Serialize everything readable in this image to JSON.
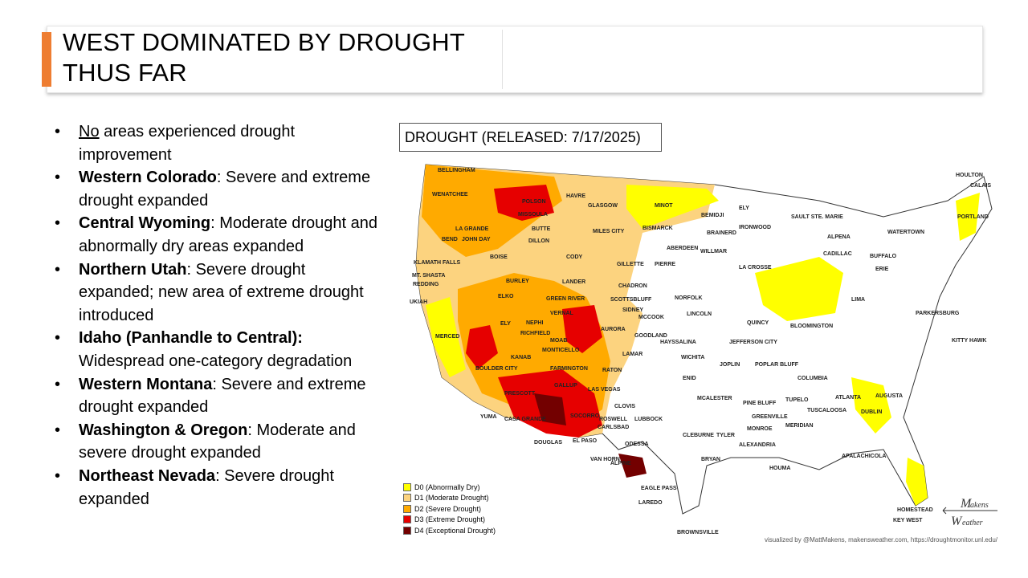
{
  "slide": {
    "title_lines": [
      "WEST DOMINATED BY DROUGHT",
      "THUS FAR"
    ],
    "accent_color": "#ee7d31"
  },
  "bullets": [
    {
      "bold": "",
      "underline": "No",
      "text": " areas experienced drought improvement"
    },
    {
      "bold": "Western Colorado",
      "underline": "",
      "text": ": Severe and extreme drought expanded"
    },
    {
      "bold": "Central Wyoming",
      "underline": "",
      "text": ": Moderate drought and abnormally dry areas expanded"
    },
    {
      "bold": "Northern Utah",
      "underline": "",
      "text": ": Severe drought expanded; new area of extreme drought introduced"
    },
    {
      "bold": "Idaho (Panhandle to Central):",
      "underline": "",
      "text": " Widespread one-category degradation"
    },
    {
      "bold": "Western Montana",
      "underline": "",
      "text": ": Severe and extreme drought expanded"
    },
    {
      "bold": "Washington & Oregon",
      "underline": "",
      "text": ": Moderate and severe drought expanded"
    },
    {
      "bold": "Northeast Nevada",
      "underline": "",
      "text": ": Severe drought expanded"
    }
  ],
  "map": {
    "title": "DROUGHT (RELEASED: 7/17/2025)",
    "legend": [
      {
        "label": "D0 (Abnormally Dry)",
        "color": "#ffff00"
      },
      {
        "label": "D1 (Moderate Drought)",
        "color": "#fcd37f"
      },
      {
        "label": "D2 (Severe Drought)",
        "color": "#ffaa00"
      },
      {
        "label": "D3 (Extreme Drought)",
        "color": "#e60000"
      },
      {
        "label": "D4 (Exceptional Drought)",
        "color": "#730000"
      }
    ],
    "cities": [
      "BELLINGHAM",
      "WENATCHEE",
      "POLSON",
      "HAVRE",
      "GLASGOW",
      "MINOT",
      "BEMIDJI",
      "ELY",
      "HOULTON",
      "CALAIS",
      "MISSOULA",
      "LA GRANDE",
      "BUTTE",
      "DILLON",
      "MILES CITY",
      "BISMARCK",
      "BRAINERD",
      "IRONWOOD",
      "SAULT STE. MARIE",
      "PORTLAND",
      "BEND",
      "JOHN DAY",
      "BOISE",
      "CODY",
      "ABERDEEN",
      "WILLMAR",
      "ALPENA",
      "WATERTOWN",
      "KLAMATH FALLS",
      "MT. SHASTA",
      "REDDING",
      "GILLETTE",
      "PIERRE",
      "LA CROSSE",
      "CADILLAC",
      "BUFFALO",
      "ERIE",
      "BURLEY",
      "LANDER",
      "CHADRON",
      "NORFOLK",
      "UKIAH",
      "ELKO",
      "GREEN RIVER",
      "SCOTTSBLUFF",
      "SIDNEY",
      "LINCOLN",
      "LIMA",
      "PARKERSBURG",
      "NEPHI",
      "VERNAL",
      "MCCOOK",
      "QUINCY",
      "BLOOMINGTON",
      "MERCED",
      "ELY",
      "RICHFIELD",
      "AURORA",
      "GOODLAND",
      "MOAB",
      "MONTICELLO",
      "HAYSSALINA",
      "JEFFERSON CITY",
      "KITTY HAWK",
      "KANAB",
      "LAMAR",
      "WICHITA",
      "BOULDER CITY",
      "FARMINGTON",
      "RATON",
      "JOPLIN",
      "POPLAR BLUFF",
      "COLUMBIA",
      "GALLUP",
      "LAS VEGAS",
      "ENID",
      "PRESCOTT",
      "ATLANTA",
      "AUGUSTA",
      "CLOVIS",
      "MCALESTER",
      "PINE BLUFF",
      "TUPELO",
      "YUMA",
      "CASA GRANDE",
      "SOCORRO",
      "ROSWELL",
      "LUBBOCK",
      "GREENVILLE",
      "TUSCALOOSA",
      "DUBLIN",
      "MONROE",
      "MERIDIAN",
      "CARLSBAD",
      "DOUGLAS",
      "EL PASO",
      "ODESSA",
      "CLEBURNE",
      "TYLER",
      "ALEXANDRIA",
      "VAN HORN",
      "ALPINE",
      "BRYAN",
      "APALACHICOLA",
      "HOUMA",
      "EAGLE PASS",
      "LAREDO",
      "HOMESTEAD",
      "KEY WEST",
      "BROWNSVILLE"
    ],
    "credit": "visualized by @MattMakens, makensweather.com, https://droughtmonitor.unl.edu/",
    "logo_text": [
      "Makens",
      "Weather"
    ]
  }
}
